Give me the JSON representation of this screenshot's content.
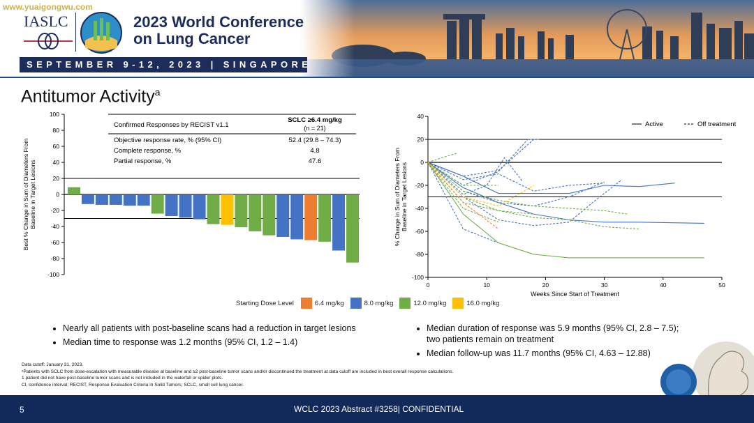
{
  "header": {
    "watermark": "www.yuaigongwu.com",
    "org": "IASLC",
    "conf_line1": "2023 World Conference",
    "conf_line2": "on Lung Cancer",
    "dates": "SEPTEMBER 9-12, 2023 | SINGAPORE"
  },
  "slide": {
    "title": "Antitumor Activity",
    "title_sup": "a"
  },
  "table": {
    "col1_header": "Confirmed Responses by RECIST v1.1",
    "col2_header_line1": "SCLC ≥6.4 mg/kg",
    "col2_header_line2": "(n = 21)",
    "rows": [
      {
        "label": "Objective response rate, % (95% CI)",
        "value": "52.4 (29.8 – 74.3)"
      },
      {
        "label": "Complete response, %",
        "value": "4.8"
      },
      {
        "label": "Partial response, %",
        "value": "47.6"
      }
    ]
  },
  "colors": {
    "d64": "#ef7d31",
    "d80": "#4472c4",
    "d120": "#70ad47",
    "d160": "#ffc000"
  },
  "legend": {
    "title": "Starting Dose Level",
    "items": [
      {
        "label": "6.4 mg/kg",
        "key": "d64"
      },
      {
        "label": "8.0 mg/kg",
        "key": "d80"
      },
      {
        "label": "12.0 mg/kg",
        "key": "d120"
      },
      {
        "label": "16.0 mg/kg",
        "key": "d160"
      }
    ]
  },
  "chart_data": [
    {
      "type": "bar",
      "ylabel": "Best % Change in Sum of Diameters From Baseline in Target Lesions",
      "ylim": [
        -100,
        100
      ],
      "yticks": [
        100,
        80,
        60,
        40,
        20,
        0,
        -20,
        -40,
        -60,
        -80,
        -100
      ],
      "reference_lines": [
        20,
        -30
      ],
      "series": [
        {
          "values": [
            9,
            -12,
            -13,
            -13,
            -14,
            -14,
            -24,
            -27,
            -29,
            -31,
            -37,
            -38,
            -41,
            -46,
            -51,
            -53,
            -56,
            -57,
            -59,
            -70,
            -85
          ],
          "doses": [
            "d120",
            "d80",
            "d80",
            "d80",
            "d80",
            "d80",
            "d120",
            "d80",
            "d80",
            "d80",
            "d120",
            "d160",
            "d120",
            "d120",
            "d120",
            "d80",
            "d80",
            "d64",
            "d120",
            "d80",
            "d120"
          ]
        }
      ]
    },
    {
      "type": "line",
      "xlabel": "Weeks Since Start of Treatment",
      "ylabel": "% Change in Sum of Diameters From Baseline in Target Lesions",
      "xlim": [
        0,
        50
      ],
      "ylim": [
        -100,
        40
      ],
      "xticks": [
        0,
        10,
        20,
        30,
        40,
        50
      ],
      "yticks": [
        40,
        20,
        0,
        -20,
        -40,
        -60,
        -80,
        -100
      ],
      "reference_lines": [
        20,
        -30
      ],
      "line_legend": [
        {
          "label": "Active",
          "style": "solid"
        },
        {
          "label": "Off treatment",
          "style": "dashed"
        }
      ],
      "series": [
        {
          "dose": "d80",
          "status": "active",
          "points": [
            [
              0,
              0
            ],
            [
              6,
              -12
            ],
            [
              12,
              -27
            ],
            [
              24,
              -27
            ],
            [
              30,
              -20
            ],
            [
              36,
              -21
            ],
            [
              42,
              -18
            ]
          ]
        },
        {
          "dose": "d80",
          "status": "active",
          "points": [
            [
              0,
              0
            ],
            [
              6,
              -22
            ],
            [
              12,
              -35
            ],
            [
              18,
              -45
            ],
            [
              24,
              -50
            ],
            [
              30,
              -52
            ],
            [
              36,
              -52
            ],
            [
              47,
              -53
            ]
          ]
        },
        {
          "dose": "d80",
          "status": "off",
          "points": [
            [
              0,
              0
            ],
            [
              6,
              -12
            ],
            [
              12,
              -7
            ],
            [
              18,
              20
            ]
          ]
        },
        {
          "dose": "d80",
          "status": "off",
          "points": [
            [
              0,
              0
            ],
            [
              6,
              -15
            ],
            [
              12,
              -10
            ],
            [
              18,
              -25
            ],
            [
              24,
              -20
            ],
            [
              30,
              -18
            ]
          ]
        },
        {
          "dose": "d80",
          "status": "off",
          "points": [
            [
              0,
              0
            ],
            [
              6,
              -25
            ],
            [
              12,
              -35
            ],
            [
              18,
              -38
            ],
            [
              24,
              -30
            ],
            [
              30,
              -17
            ]
          ]
        },
        {
          "dose": "d80",
          "status": "off",
          "points": [
            [
              0,
              0
            ],
            [
              6,
              -30
            ],
            [
              12,
              -50
            ],
            [
              18,
              -55
            ],
            [
              24,
              -52
            ],
            [
              28,
              -35
            ],
            [
              33,
              -15
            ]
          ]
        },
        {
          "dose": "d80",
          "status": "off",
          "points": [
            [
              0,
              0
            ],
            [
              6,
              -58
            ],
            [
              12,
              -70
            ]
          ]
        },
        {
          "dose": "d80",
          "status": "off",
          "points": [
            [
              0,
              0
            ],
            [
              6,
              -28
            ],
            [
              10,
              -20
            ],
            [
              13,
              4
            ],
            [
              16,
              -16
            ]
          ]
        },
        {
          "dose": "d80",
          "status": "off",
          "points": [
            [
              0,
              0
            ],
            [
              6,
              -20
            ],
            [
              12,
              -8
            ],
            [
              17,
              20
            ],
            [
              19,
              20
            ]
          ]
        },
        {
          "dose": "d120",
          "status": "active",
          "points": [
            [
              0,
              0
            ],
            [
              6,
              -45
            ],
            [
              12,
              -70
            ],
            [
              18,
              -80
            ],
            [
              24,
              -83
            ],
            [
              36,
              -83
            ],
            [
              47,
              -83
            ]
          ]
        },
        {
          "dose": "d120",
          "status": "off",
          "points": [
            [
              0,
              0
            ],
            [
              6,
              -25
            ],
            [
              12,
              -33
            ],
            [
              18,
              -38
            ],
            [
              24,
              -40
            ],
            [
              30,
              -42
            ],
            [
              34,
              -45
            ]
          ]
        },
        {
          "dose": "d120",
          "status": "off",
          "points": [
            [
              0,
              0
            ],
            [
              6,
              -30
            ],
            [
              12,
              -42
            ],
            [
              18,
              -48
            ],
            [
              24,
              -50
            ],
            [
              30,
              -56
            ],
            [
              36,
              -58
            ]
          ]
        },
        {
          "dose": "d120",
          "status": "off",
          "points": [
            [
              0,
              0
            ],
            [
              6,
              -35
            ],
            [
              12,
              -42
            ],
            [
              18,
              -45
            ]
          ]
        },
        {
          "dose": "d120",
          "status": "off",
          "points": [
            [
              0,
              0
            ],
            [
              3,
              5
            ],
            [
              5,
              8
            ]
          ]
        },
        {
          "dose": "d120",
          "status": "off",
          "points": [
            [
              0,
              0
            ],
            [
              6,
              -20
            ],
            [
              12,
              -20
            ]
          ]
        },
        {
          "dose": "d120",
          "status": "off",
          "points": [
            [
              0,
              0
            ],
            [
              6,
              -40
            ],
            [
              12,
              -52
            ]
          ]
        },
        {
          "dose": "d64",
          "status": "off",
          "points": [
            [
              0,
              0
            ],
            [
              6,
              -35
            ],
            [
              12,
              -58
            ]
          ]
        },
        {
          "dose": "d160",
          "status": "off",
          "points": [
            [
              0,
              0
            ],
            [
              6,
              -30
            ],
            [
              12,
              -38
            ],
            [
              18,
              -20
            ]
          ]
        }
      ]
    }
  ],
  "bullets_left": [
    "Nearly all patients with post-baseline scans had a reduction in target lesions",
    "Median time to response was 1.2 months (95% CI, 1.2 – 1.4)"
  ],
  "bullets_right": [
    "Median duration of response was 5.9 months (95% CI, 2.8 – 7.5); two patients remain on treatment",
    "Median follow-up was 11.7 months (95% CI, 4.63 – 12.88)"
  ],
  "footnotes": [
    "Data cutoff: January 31, 2023.",
    "ᵃPatients with SCLC from dose-escalation with measurable disease at baseline and ≥2 post-baseline tumor scans and/or discontinued the treatment at data cutoff are included in best overall response calculations.",
    "1 patient did not have post-baseline tumor scans and is not included in the waterfall or spider plots.",
    "CI, confidence interval; RECIST, Response Evaluation Criteria in Solid Tumors; SCLC, small cell lung cancer."
  ],
  "footer": {
    "page": "5",
    "abstract": "WCLC 2023 Abstract #3258| CONFIDENTIAL"
  }
}
